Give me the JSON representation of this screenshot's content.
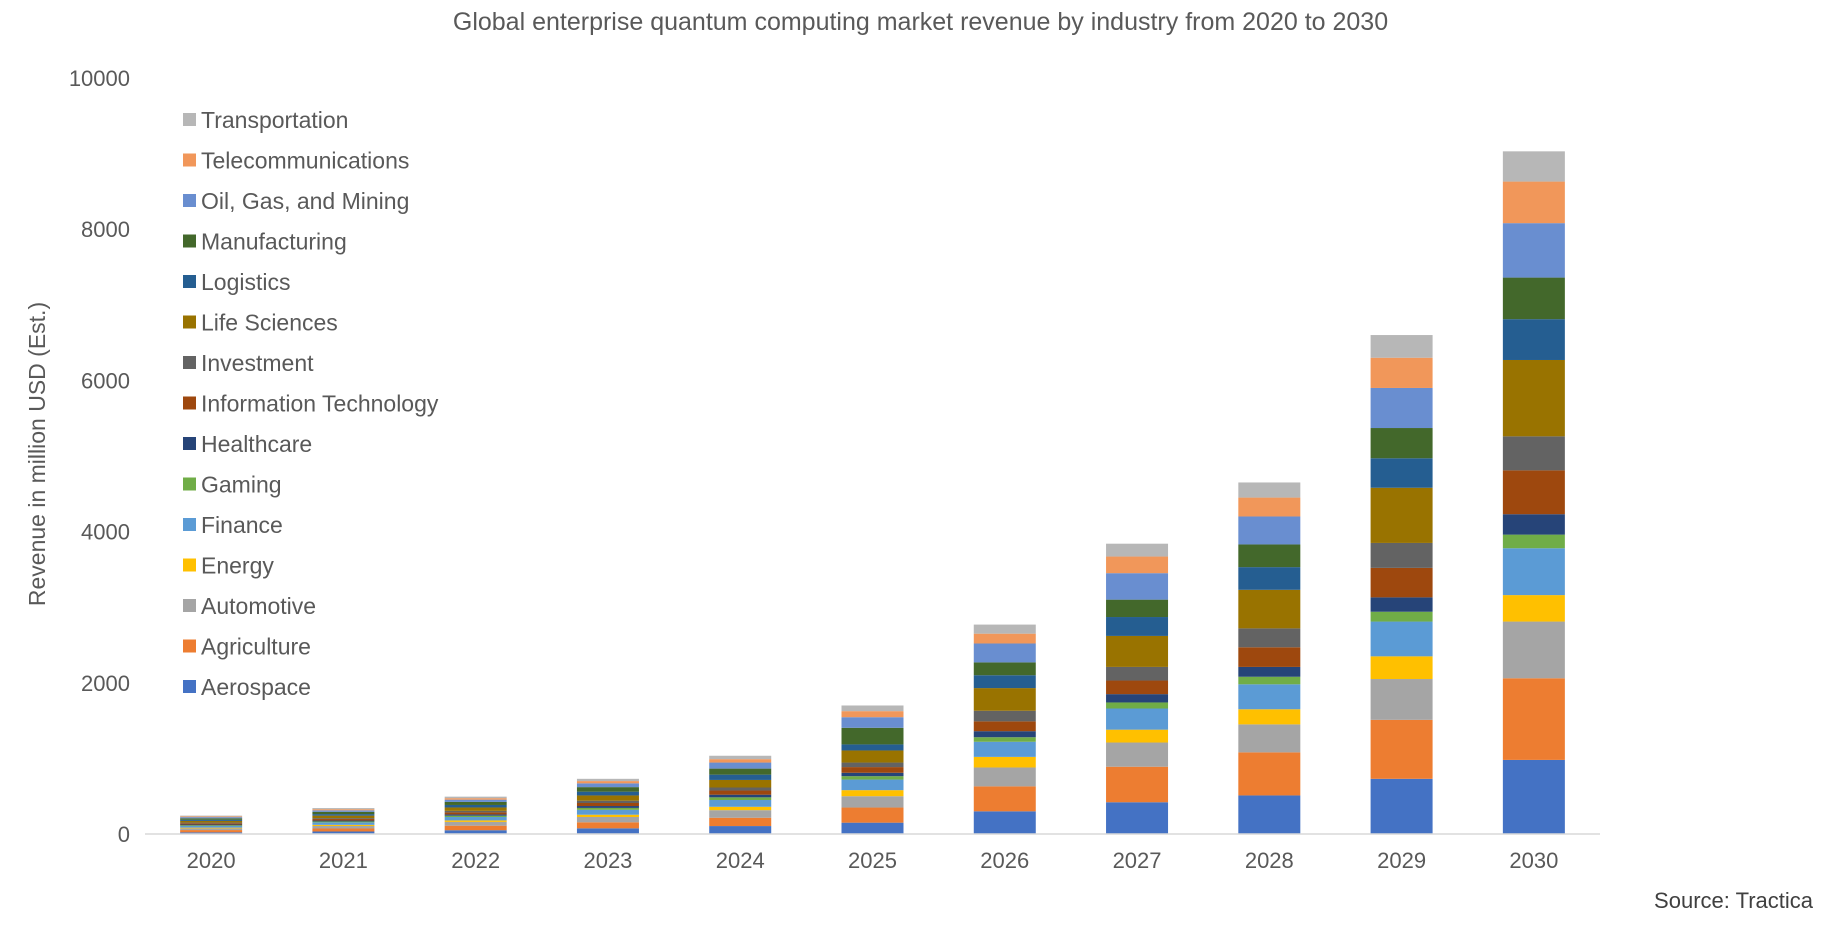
{
  "chart_data": {
    "type": "bar",
    "stacked": true,
    "title": "Global enterprise quantum computing market revenue by industry from 2020 to 2030",
    "xlabel": "",
    "ylabel": "Revenue in million USD (Est.)",
    "ylim": [
      0,
      10000
    ],
    "yticks": [
      "0",
      "2000",
      "4000",
      "6000",
      "8000",
      "10000"
    ],
    "categories": [
      "2020",
      "2021",
      "2022",
      "2023",
      "2024",
      "2025",
      "2026",
      "2027",
      "2028",
      "2029",
      "2030"
    ],
    "grid": false,
    "legend_position": "top-left",
    "source": "Source: Tractica",
    "series": [
      {
        "name": "Aerospace",
        "color": "#4472C4",
        "values": [
          22,
          33,
          50,
          75,
          105,
          150,
          300,
          420,
          510,
          730,
          980
        ]
      },
      {
        "name": "Agriculture",
        "color": "#ED7D31",
        "values": [
          30,
          40,
          60,
          80,
          110,
          200,
          330,
          470,
          570,
          780,
          1080
        ]
      },
      {
        "name": "Automotive",
        "color": "#A5A5A5",
        "values": [
          22,
          33,
          50,
          70,
          100,
          150,
          250,
          320,
          370,
          540,
          750
        ]
      },
      {
        "name": "Energy",
        "color": "#FFC000",
        "values": [
          10,
          15,
          20,
          30,
          45,
          80,
          140,
          170,
          200,
          300,
          350
        ]
      },
      {
        "name": "Finance",
        "color": "#5B9BD5",
        "values": [
          22,
          33,
          45,
          65,
          90,
          140,
          200,
          280,
          330,
          460,
          620
        ]
      },
      {
        "name": "Gaming",
        "color": "#70AD47",
        "values": [
          10,
          12,
          17,
          25,
          35,
          45,
          60,
          80,
          100,
          130,
          180
        ]
      },
      {
        "name": "Healthcare",
        "color": "#264478",
        "values": [
          10,
          12,
          17,
          25,
          35,
          45,
          80,
          110,
          130,
          190,
          270
        ]
      },
      {
        "name": "Information Technology",
        "color": "#9E480E",
        "values": [
          15,
          20,
          27,
          40,
          55,
          75,
          130,
          180,
          260,
          390,
          580
        ]
      },
      {
        "name": "Investment",
        "color": "#636363",
        "values": [
          10,
          12,
          20,
          30,
          40,
          60,
          140,
          180,
          250,
          330,
          450
        ]
      },
      {
        "name": "Life Sciences",
        "color": "#997300",
        "values": [
          22,
          33,
          45,
          70,
          100,
          160,
          300,
          410,
          510,
          730,
          1010
        ]
      },
      {
        "name": "Logistics",
        "color": "#255E91",
        "values": [
          15,
          20,
          33,
          50,
          70,
          80,
          170,
          250,
          300,
          390,
          540
        ]
      },
      {
        "name": "Manufacturing",
        "color": "#43682B",
        "values": [
          20,
          30,
          40,
          60,
          80,
          220,
          170,
          230,
          300,
          400,
          550
        ]
      },
      {
        "name": "Oil, Gas, and Mining",
        "color": "#698ED0",
        "values": [
          15,
          20,
          30,
          50,
          80,
          140,
          250,
          350,
          370,
          530,
          720
        ]
      },
      {
        "name": "Telecommunications",
        "color": "#F1975A",
        "values": [
          10,
          15,
          20,
          30,
          45,
          80,
          130,
          220,
          250,
          400,
          550
        ]
      },
      {
        "name": "Transportation",
        "color": "#B7B7B7",
        "values": [
          10,
          15,
          20,
          30,
          45,
          75,
          120,
          170,
          200,
          300,
          400
        ]
      }
    ]
  }
}
